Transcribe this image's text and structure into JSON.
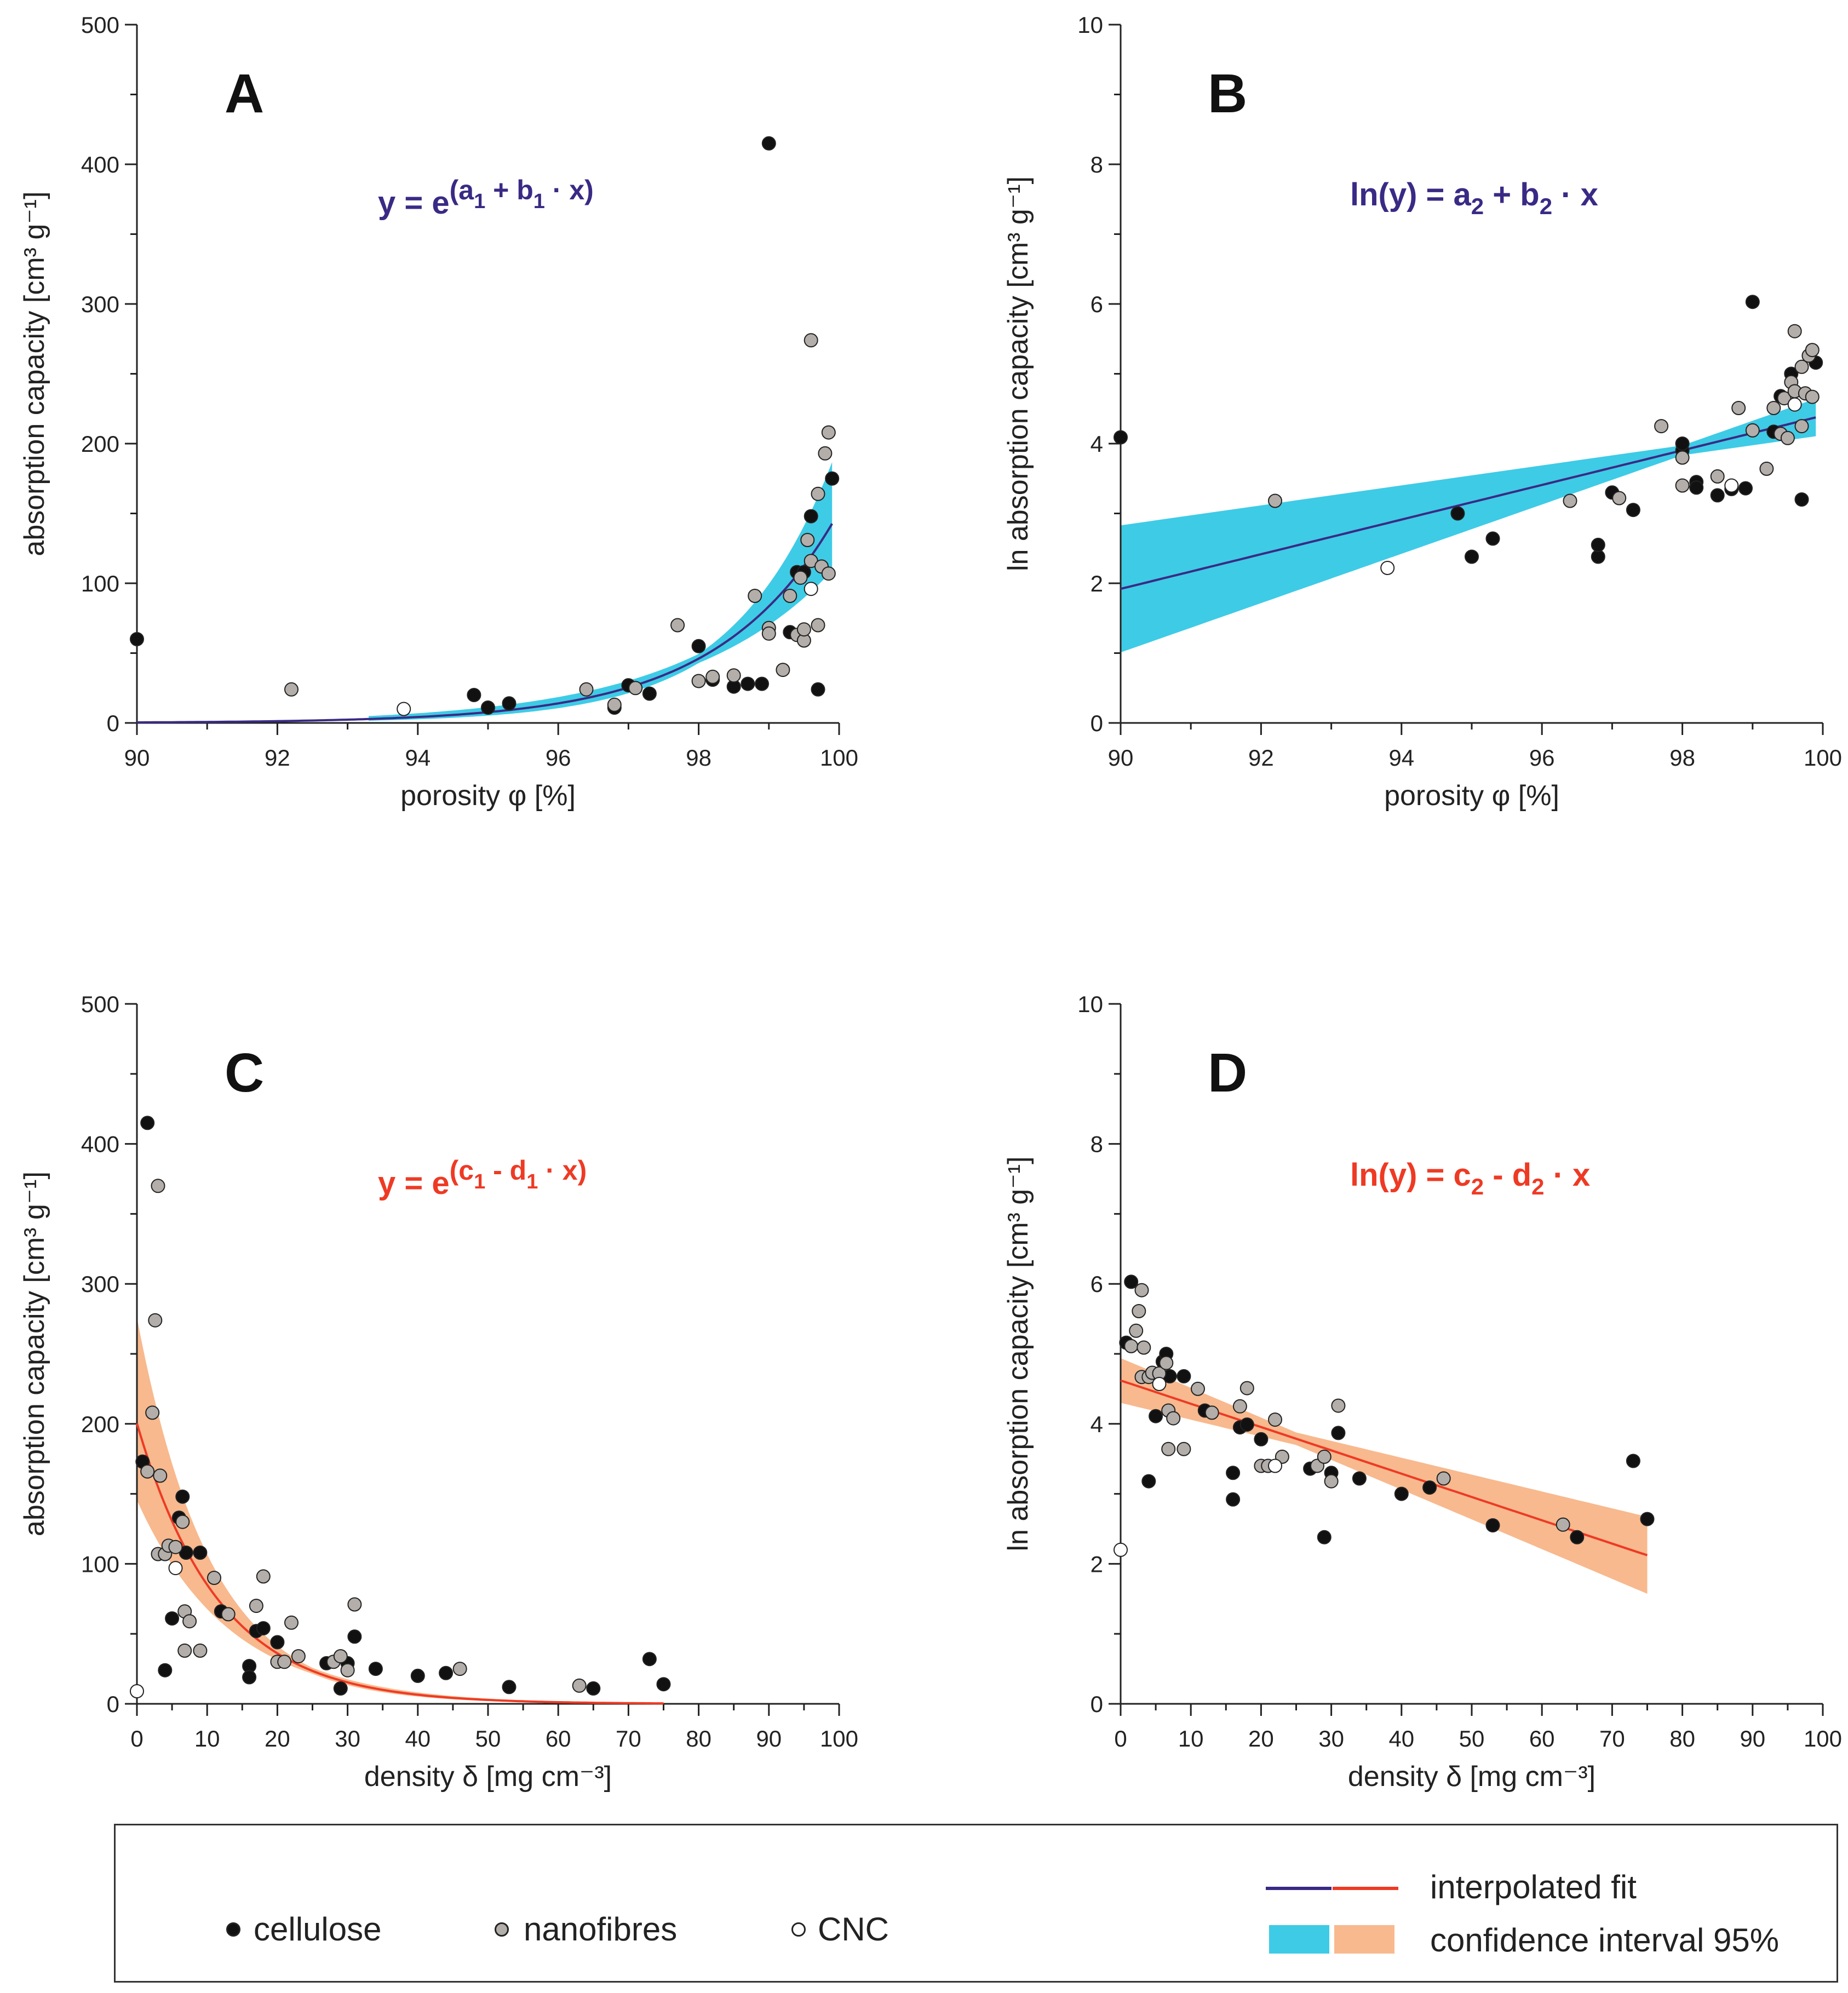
{
  "colors": {
    "fit_blue": "#3a2a85",
    "fit_red": "#ee3a24",
    "ci_blue": "#3ecbe6",
    "ci_orange": "#f8b98e",
    "cellulose": "#111111",
    "nanofibres": "#b3aea9",
    "cnc": "#ffffff"
  },
  "legend": {
    "cellulose": "cellulose",
    "nanofibres": "nanofibres",
    "cnc": "CNC",
    "fit": "interpolated fit",
    "ci": "confidence interval 95%"
  },
  "chart_data": [
    {
      "id": "A",
      "type": "scatter",
      "panel_label": "A",
      "equation": {
        "pre": "y = e",
        "sup": "(a",
        "parts": [
          {
            "t": "1",
            "sub": true
          },
          {
            "t": " + b"
          },
          {
            "t": "1",
            "sub": true
          },
          {
            "t": " · x)"
          }
        ]
      },
      "equation_color": "fit_blue",
      "xlabel": "porosity φ [%]",
      "ylabel": "absorption capacity [cm³ g⁻¹]",
      "xlim": [
        90,
        100
      ],
      "ylim": [
        0,
        500
      ],
      "xticks": [
        90,
        92,
        94,
        96,
        98,
        100
      ],
      "yticks": [
        0,
        100,
        200,
        300,
        400,
        500
      ],
      "fit": {
        "model": "exp",
        "a": -54.5,
        "b": 0.5952,
        "xrange": [
          90,
          99.9
        ],
        "color": "fit_blue",
        "ci_color": "ci_blue",
        "ci_start": 93.3
      },
      "series": [
        {
          "name": "cellulose",
          "points": [
            [
              90,
              60
            ],
            [
              94.8,
              20
            ],
            [
              95,
              11
            ],
            [
              95.3,
              14
            ],
            [
              96.8,
              11
            ],
            [
              97,
              27
            ],
            [
              97.3,
              21
            ],
            [
              98,
              55
            ],
            [
              98.2,
              31
            ],
            [
              98.5,
              26
            ],
            [
              98.7,
              28
            ],
            [
              98.9,
              28
            ],
            [
              99,
              415
            ],
            [
              99.3,
              65
            ],
            [
              99.4,
              108
            ],
            [
              99.5,
              108
            ],
            [
              99.6,
              148
            ],
            [
              99.7,
              24
            ],
            [
              99.9,
              175
            ]
          ]
        },
        {
          "name": "nanofibres",
          "points": [
            [
              92.2,
              24
            ],
            [
              96.4,
              24
            ],
            [
              96.8,
              13
            ],
            [
              97.1,
              25
            ],
            [
              97.7,
              70
            ],
            [
              98,
              30
            ],
            [
              98.2,
              33
            ],
            [
              98.5,
              34
            ],
            [
              98.8,
              91
            ],
            [
              99,
              68
            ],
            [
              99,
              64
            ],
            [
              99.2,
              38
            ],
            [
              99.3,
              91
            ],
            [
              99.4,
              63
            ],
            [
              99.45,
              104
            ],
            [
              99.5,
              59
            ],
            [
              99.5,
              67
            ],
            [
              99.55,
              131
            ],
            [
              99.6,
              274
            ],
            [
              99.6,
              116
            ],
            [
              99.7,
              164
            ],
            [
              99.7,
              70
            ],
            [
              99.75,
              112
            ],
            [
              99.8,
              193
            ],
            [
              99.85,
              208
            ],
            [
              99.85,
              107
            ]
          ]
        },
        {
          "name": "CNC",
          "points": [
            [
              93.8,
              10
            ],
            [
              99.6,
              96
            ]
          ]
        }
      ]
    },
    {
      "id": "B",
      "type": "scatter",
      "panel_label": "B",
      "equation": {
        "pre": "ln(y) = a",
        "sup": "",
        "parts": [
          {
            "t": "2",
            "sub": true
          },
          {
            "t": " + b"
          },
          {
            "t": "2",
            "sub": true
          },
          {
            "t": " · x"
          }
        ]
      },
      "equation_color": "fit_blue",
      "xlabel": "porosity φ [%]",
      "ylabel": "ln absorption capacity [cm³ g⁻¹]",
      "xlim": [
        90,
        100
      ],
      "ylim": [
        0,
        10
      ],
      "xticks": [
        90,
        92,
        94,
        96,
        98,
        100
      ],
      "yticks": [
        0,
        2,
        4,
        6,
        8,
        10
      ],
      "fit": {
        "model": "linear",
        "a": -20.4,
        "b": 0.248,
        "xrange": [
          90,
          99.9
        ],
        "color": "fit_blue",
        "ci_color": "ci_blue",
        "ci_start": 90
      },
      "series": [
        {
          "name": "cellulose",
          "points": [
            [
              90,
              4.09
            ],
            [
              94.8,
              3.0
            ],
            [
              95,
              2.38
            ],
            [
              95.3,
              2.64
            ],
            [
              96.8,
              2.38
            ],
            [
              96.8,
              2.55
            ],
            [
              97,
              3.3
            ],
            [
              97.3,
              3.05
            ],
            [
              98,
              3.9
            ],
            [
              98,
              4.0
            ],
            [
              98.2,
              3.45
            ],
            [
              98.2,
              3.37
            ],
            [
              98.5,
              3.26
            ],
            [
              98.7,
              3.35
            ],
            [
              98.9,
              3.36
            ],
            [
              99,
              6.03
            ],
            [
              99.3,
              4.17
            ],
            [
              99.4,
              4.68
            ],
            [
              99.55,
              5.0
            ],
            [
              99.7,
              3.2
            ],
            [
              99.9,
              5.16
            ]
          ]
        },
        {
          "name": "nanofibres",
          "points": [
            [
              92.2,
              3.18
            ],
            [
              96.4,
              3.18
            ],
            [
              97.1,
              3.22
            ],
            [
              97.7,
              4.25
            ],
            [
              98,
              3.4
            ],
            [
              98,
              3.8
            ],
            [
              98.5,
              3.53
            ],
            [
              98.8,
              4.51
            ],
            [
              99,
              4.19
            ],
            [
              99.2,
              3.64
            ],
            [
              99.3,
              4.51
            ],
            [
              99.4,
              4.14
            ],
            [
              99.45,
              4.65
            ],
            [
              99.5,
              4.08
            ],
            [
              99.55,
              4.88
            ],
            [
              99.6,
              5.61
            ],
            [
              99.6,
              4.75
            ],
            [
              99.7,
              5.1
            ],
            [
              99.7,
              4.25
            ],
            [
              99.75,
              4.72
            ],
            [
              99.8,
              5.26
            ],
            [
              99.85,
              5.34
            ],
            [
              99.85,
              4.67
            ]
          ]
        },
        {
          "name": "CNC",
          "points": [
            [
              93.8,
              2.22
            ],
            [
              98.7,
              3.4
            ],
            [
              99.6,
              4.56
            ]
          ]
        }
      ]
    },
    {
      "id": "C",
      "type": "scatter",
      "panel_label": "C",
      "equation": {
        "pre": "y = e",
        "sup": "(c",
        "parts": [
          {
            "t": "1",
            "sub": true
          },
          {
            "t": " - d"
          },
          {
            "t": "1",
            "sub": true
          },
          {
            "t": " · x)"
          }
        ]
      },
      "equation_color": "fit_red",
      "xlabel": "density δ [mg cm⁻³]",
      "ylabel": "absorption capacity [cm³ g⁻¹]",
      "xlim": [
        0,
        100
      ],
      "ylim": [
        0,
        500
      ],
      "xticks": [
        0,
        10,
        20,
        30,
        40,
        50,
        60,
        70,
        80,
        90,
        100
      ],
      "yticks": [
        0,
        100,
        200,
        300,
        400,
        500
      ],
      "fit": {
        "model": "exp",
        "a": 5.3,
        "b": -0.0857,
        "xrange": [
          0,
          75
        ],
        "color": "fit_red",
        "ci_color": "ci_orange",
        "ci_start": 0
      },
      "series": [
        {
          "name": "cellulose",
          "points": [
            [
              1.5,
              415
            ],
            [
              0.8,
              173
            ],
            [
              4,
              24
            ],
            [
              5,
              61
            ],
            [
              6,
              133
            ],
            [
              6.5,
              148
            ],
            [
              7,
              108
            ],
            [
              9,
              108
            ],
            [
              12,
              66
            ],
            [
              16,
              27
            ],
            [
              16,
              19
            ],
            [
              17,
              52
            ],
            [
              18,
              54
            ],
            [
              20,
              44
            ],
            [
              27,
              29
            ],
            [
              29,
              11
            ],
            [
              30,
              29
            ],
            [
              31,
              48
            ],
            [
              34,
              25
            ],
            [
              40,
              20
            ],
            [
              44,
              22
            ],
            [
              53,
              12
            ],
            [
              65,
              11
            ],
            [
              73,
              32
            ],
            [
              75,
              14
            ]
          ]
        },
        {
          "name": "nanofibres",
          "points": [
            [
              1.5,
              166
            ],
            [
              2.2,
              208
            ],
            [
              2.6,
              274
            ],
            [
              3,
              370
            ],
            [
              3.3,
              163
            ],
            [
              3,
              107
            ],
            [
              4,
              107
            ],
            [
              4.5,
              113
            ],
            [
              5.5,
              112
            ],
            [
              6.5,
              130
            ],
            [
              6.8,
              66
            ],
            [
              6.8,
              38
            ],
            [
              7.5,
              59
            ],
            [
              9,
              38
            ],
            [
              11,
              90
            ],
            [
              13,
              64
            ],
            [
              17,
              70
            ],
            [
              18,
              91
            ],
            [
              20,
              30
            ],
            [
              21,
              30
            ],
            [
              22,
              58
            ],
            [
              23,
              34
            ],
            [
              28,
              30
            ],
            [
              29,
              34
            ],
            [
              31,
              71
            ],
            [
              30,
              24
            ],
            [
              46,
              25
            ],
            [
              63,
              13
            ]
          ]
        },
        {
          "name": "CNC",
          "points": [
            [
              0,
              9
            ],
            [
              5.5,
              97
            ]
          ]
        }
      ]
    },
    {
      "id": "D",
      "type": "scatter",
      "panel_label": "D",
      "equation": {
        "pre": "ln(y) = c",
        "sup": "",
        "parts": [
          {
            "t": "2",
            "sub": true
          },
          {
            "t": " - d"
          },
          {
            "t": "2",
            "sub": true
          },
          {
            "t": " · x"
          }
        ]
      },
      "equation_color": "fit_red",
      "xlabel": "density δ [mg cm⁻³]",
      "ylabel": "ln absorption capacity [cm³ g⁻¹]",
      "xlim": [
        0,
        100
      ],
      "ylim": [
        0,
        10
      ],
      "xticks": [
        0,
        10,
        20,
        30,
        40,
        50,
        60,
        70,
        80,
        90,
        100
      ],
      "yticks": [
        0,
        2,
        4,
        6,
        8,
        10
      ],
      "fit": {
        "model": "linear",
        "a": 4.62,
        "b": -0.0333,
        "xrange": [
          0,
          75
        ],
        "color": "fit_red",
        "ci_color": "ci_orange",
        "ci_start": 0
      },
      "series": [
        {
          "name": "cellulose",
          "points": [
            [
              1.5,
              6.03
            ],
            [
              0.8,
              5.16
            ],
            [
              4,
              3.18
            ],
            [
              5,
              4.11
            ],
            [
              6,
              4.89
            ],
            [
              6.5,
              5.0
            ],
            [
              7,
              4.68
            ],
            [
              9,
              4.68
            ],
            [
              12,
              4.19
            ],
            [
              16,
              3.3
            ],
            [
              16,
              2.92
            ],
            [
              17,
              3.95
            ],
            [
              18,
              3.99
            ],
            [
              20,
              3.78
            ],
            [
              27,
              3.36
            ],
            [
              29,
              2.38
            ],
            [
              30,
              3.3
            ],
            [
              31,
              3.87
            ],
            [
              34,
              3.22
            ],
            [
              40,
              3.0
            ],
            [
              44,
              3.09
            ],
            [
              53,
              2.55
            ],
            [
              65,
              2.38
            ],
            [
              73,
              3.47
            ],
            [
              75,
              2.64
            ]
          ]
        },
        {
          "name": "nanofibres",
          "points": [
            [
              1.5,
              5.11
            ],
            [
              2.2,
              5.33
            ],
            [
              2.6,
              5.61
            ],
            [
              3,
              5.91
            ],
            [
              3.3,
              5.09
            ],
            [
              3,
              4.67
            ],
            [
              4,
              4.67
            ],
            [
              4.5,
              4.73
            ],
            [
              5.5,
              4.72
            ],
            [
              6.5,
              4.87
            ],
            [
              6.8,
              4.19
            ],
            [
              6.8,
              3.64
            ],
            [
              7.5,
              4.08
            ],
            [
              9,
              3.64
            ],
            [
              11,
              4.5
            ],
            [
              13,
              4.16
            ],
            [
              17,
              4.25
            ],
            [
              18,
              4.51
            ],
            [
              20,
              3.4
            ],
            [
              21,
              3.4
            ],
            [
              22,
              4.06
            ],
            [
              23,
              3.53
            ],
            [
              28,
              3.4
            ],
            [
              29,
              3.53
            ],
            [
              31,
              4.26
            ],
            [
              30,
              3.18
            ],
            [
              46,
              3.22
            ],
            [
              63,
              2.56
            ]
          ]
        },
        {
          "name": "CNC",
          "points": [
            [
              0,
              2.2
            ],
            [
              5.5,
              4.57
            ],
            [
              22,
              3.4
            ]
          ]
        }
      ]
    }
  ]
}
